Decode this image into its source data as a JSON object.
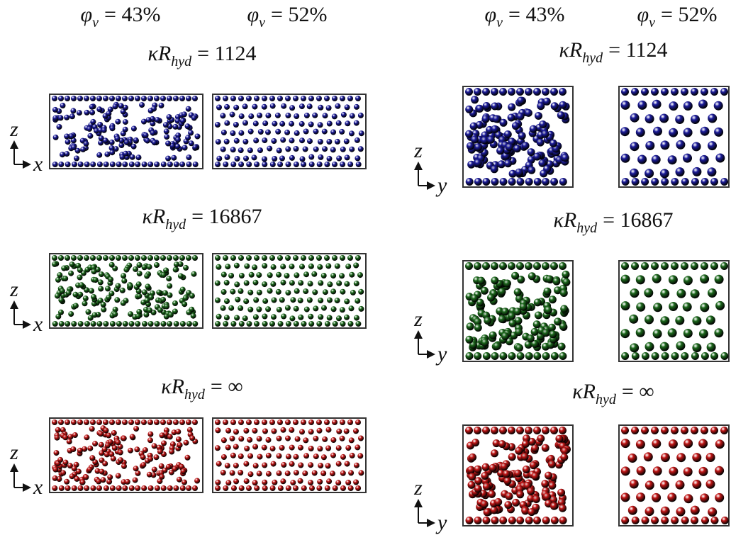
{
  "panels": [
    {
      "columns": [
        {
          "symbol": "φ",
          "sub": "v",
          "rhs": "= 43%"
        },
        {
          "symbol": "φ",
          "sub": "v",
          "rhs": "= 52%"
        }
      ],
      "axes": {
        "vertical": "z",
        "horizontal": "x"
      },
      "rows": [
        {
          "symbol": "κR",
          "sub": "hyd",
          "rhs": "= 1124",
          "color": "#1c1c9c"
        },
        {
          "symbol": "κR",
          "sub": "hyd",
          "rhs": "= 16867",
          "color": "#1d6a1d"
        },
        {
          "symbol": "κR",
          "sub": "hyd",
          "rhs": "= ∞",
          "color": "#c21616"
        }
      ]
    },
    {
      "columns": [
        {
          "symbol": "φ",
          "sub": "v",
          "rhs": "= 43%"
        },
        {
          "symbol": "φ",
          "sub": "v",
          "rhs": "= 52%"
        }
      ],
      "axes": {
        "vertical": "z",
        "horizontal": "y"
      },
      "rows": [
        {
          "symbol": "κR",
          "sub": "hyd",
          "rhs": "= 1124",
          "color": "#1c1c9c"
        },
        {
          "symbol": "κR",
          "sub": "hyd",
          "rhs": "= 16867",
          "color": "#1d6a1d"
        },
        {
          "symbol": "κR",
          "sub": "hyd",
          "rhs": "= ∞",
          "color": "#c21616"
        }
      ]
    }
  ]
}
